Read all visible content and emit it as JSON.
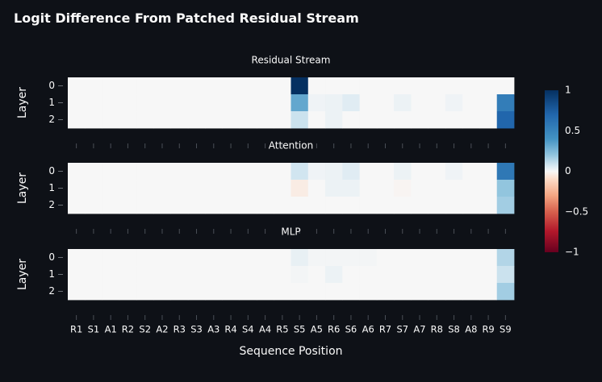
{
  "title": "Logit Difference From Patched Residual Stream",
  "chart_data": {
    "type": "heatmap",
    "xlabel": "Sequence Position",
    "ylabel": "Layer",
    "x_ticks": [
      "R1",
      "S1",
      "A1",
      "R2",
      "S2",
      "A2",
      "R3",
      "S3",
      "A3",
      "R4",
      "S4",
      "A4",
      "R5",
      "S5",
      "A5",
      "R6",
      "S6",
      "A6",
      "R7",
      "S7",
      "A7",
      "R8",
      "S8",
      "A8",
      "R9",
      "S9"
    ],
    "y_ticks": [
      "0",
      "1",
      "2"
    ],
    "colorscale": {
      "min": -1,
      "max": 1,
      "ticks": [
        "1",
        "0.5",
        "0",
        "−0.5",
        "−1"
      ],
      "tick_values": [
        1,
        0.5,
        0,
        -0.5,
        -1
      ],
      "high_color": "#053061",
      "mid_color": "#f7f7f7",
      "low_color": "#67001f"
    },
    "panels": [
      {
        "name": "Residual Stream",
        "values": [
          [
            0,
            0,
            0,
            0,
            0,
            0,
            0,
            0,
            0,
            0,
            0,
            0,
            0,
            1.0,
            0,
            0,
            0,
            0,
            0,
            0,
            0,
            0,
            0,
            0,
            0,
            0
          ],
          [
            0,
            0,
            0,
            0,
            0,
            0,
            0,
            0,
            0,
            0,
            0,
            0,
            0,
            0.42,
            0.02,
            0.03,
            0.06,
            0,
            0,
            0.03,
            0,
            0,
            0.02,
            0,
            0,
            0.62
          ],
          [
            0,
            0,
            0,
            0,
            0,
            0,
            0,
            0,
            0,
            0,
            0,
            0,
            0,
            0.12,
            0,
            0.03,
            0,
            0,
            0,
            0,
            0,
            0,
            0,
            0,
            0,
            0.75
          ]
        ]
      },
      {
        "name": "Attention",
        "values": [
          [
            0,
            0,
            0,
            0,
            0,
            0,
            0,
            0,
            0,
            0,
            0,
            0,
            0,
            0.1,
            0.02,
            0.03,
            0.06,
            0,
            0,
            0.03,
            0,
            0,
            0.02,
            0,
            0,
            0.65
          ],
          [
            0,
            0,
            0,
            0,
            0,
            0,
            0,
            0,
            0,
            0,
            0,
            0,
            0,
            -0.04,
            0,
            0.03,
            0.03,
            0,
            0,
            -0.01,
            0,
            0,
            0,
            0,
            0,
            0.3
          ],
          [
            0,
            0,
            0,
            0,
            0,
            0,
            0,
            0,
            0,
            0,
            0,
            0,
            0,
            0,
            0,
            0,
            0,
            0,
            0,
            0,
            0,
            0,
            0,
            0,
            0,
            0.25
          ]
        ]
      },
      {
        "name": "MLP",
        "values": [
          [
            0,
            0,
            0,
            0,
            0,
            0,
            0,
            0,
            0,
            0,
            0,
            0,
            0,
            0.04,
            0.01,
            0.01,
            0.01,
            0.01,
            0,
            0,
            0,
            0,
            0,
            0,
            0,
            0.2
          ],
          [
            0,
            0,
            0,
            0,
            0,
            0,
            0,
            0,
            0,
            0,
            0,
            0,
            0,
            0.01,
            0,
            0.03,
            0,
            0,
            0,
            0,
            0,
            0,
            0,
            0,
            0,
            0.12
          ],
          [
            0,
            0,
            0,
            0,
            0,
            0,
            0,
            0,
            0,
            0,
            0,
            0,
            0,
            0,
            0,
            0,
            0,
            0,
            0,
            0,
            0,
            0,
            0,
            0,
            0,
            0.25
          ]
        ]
      }
    ]
  }
}
